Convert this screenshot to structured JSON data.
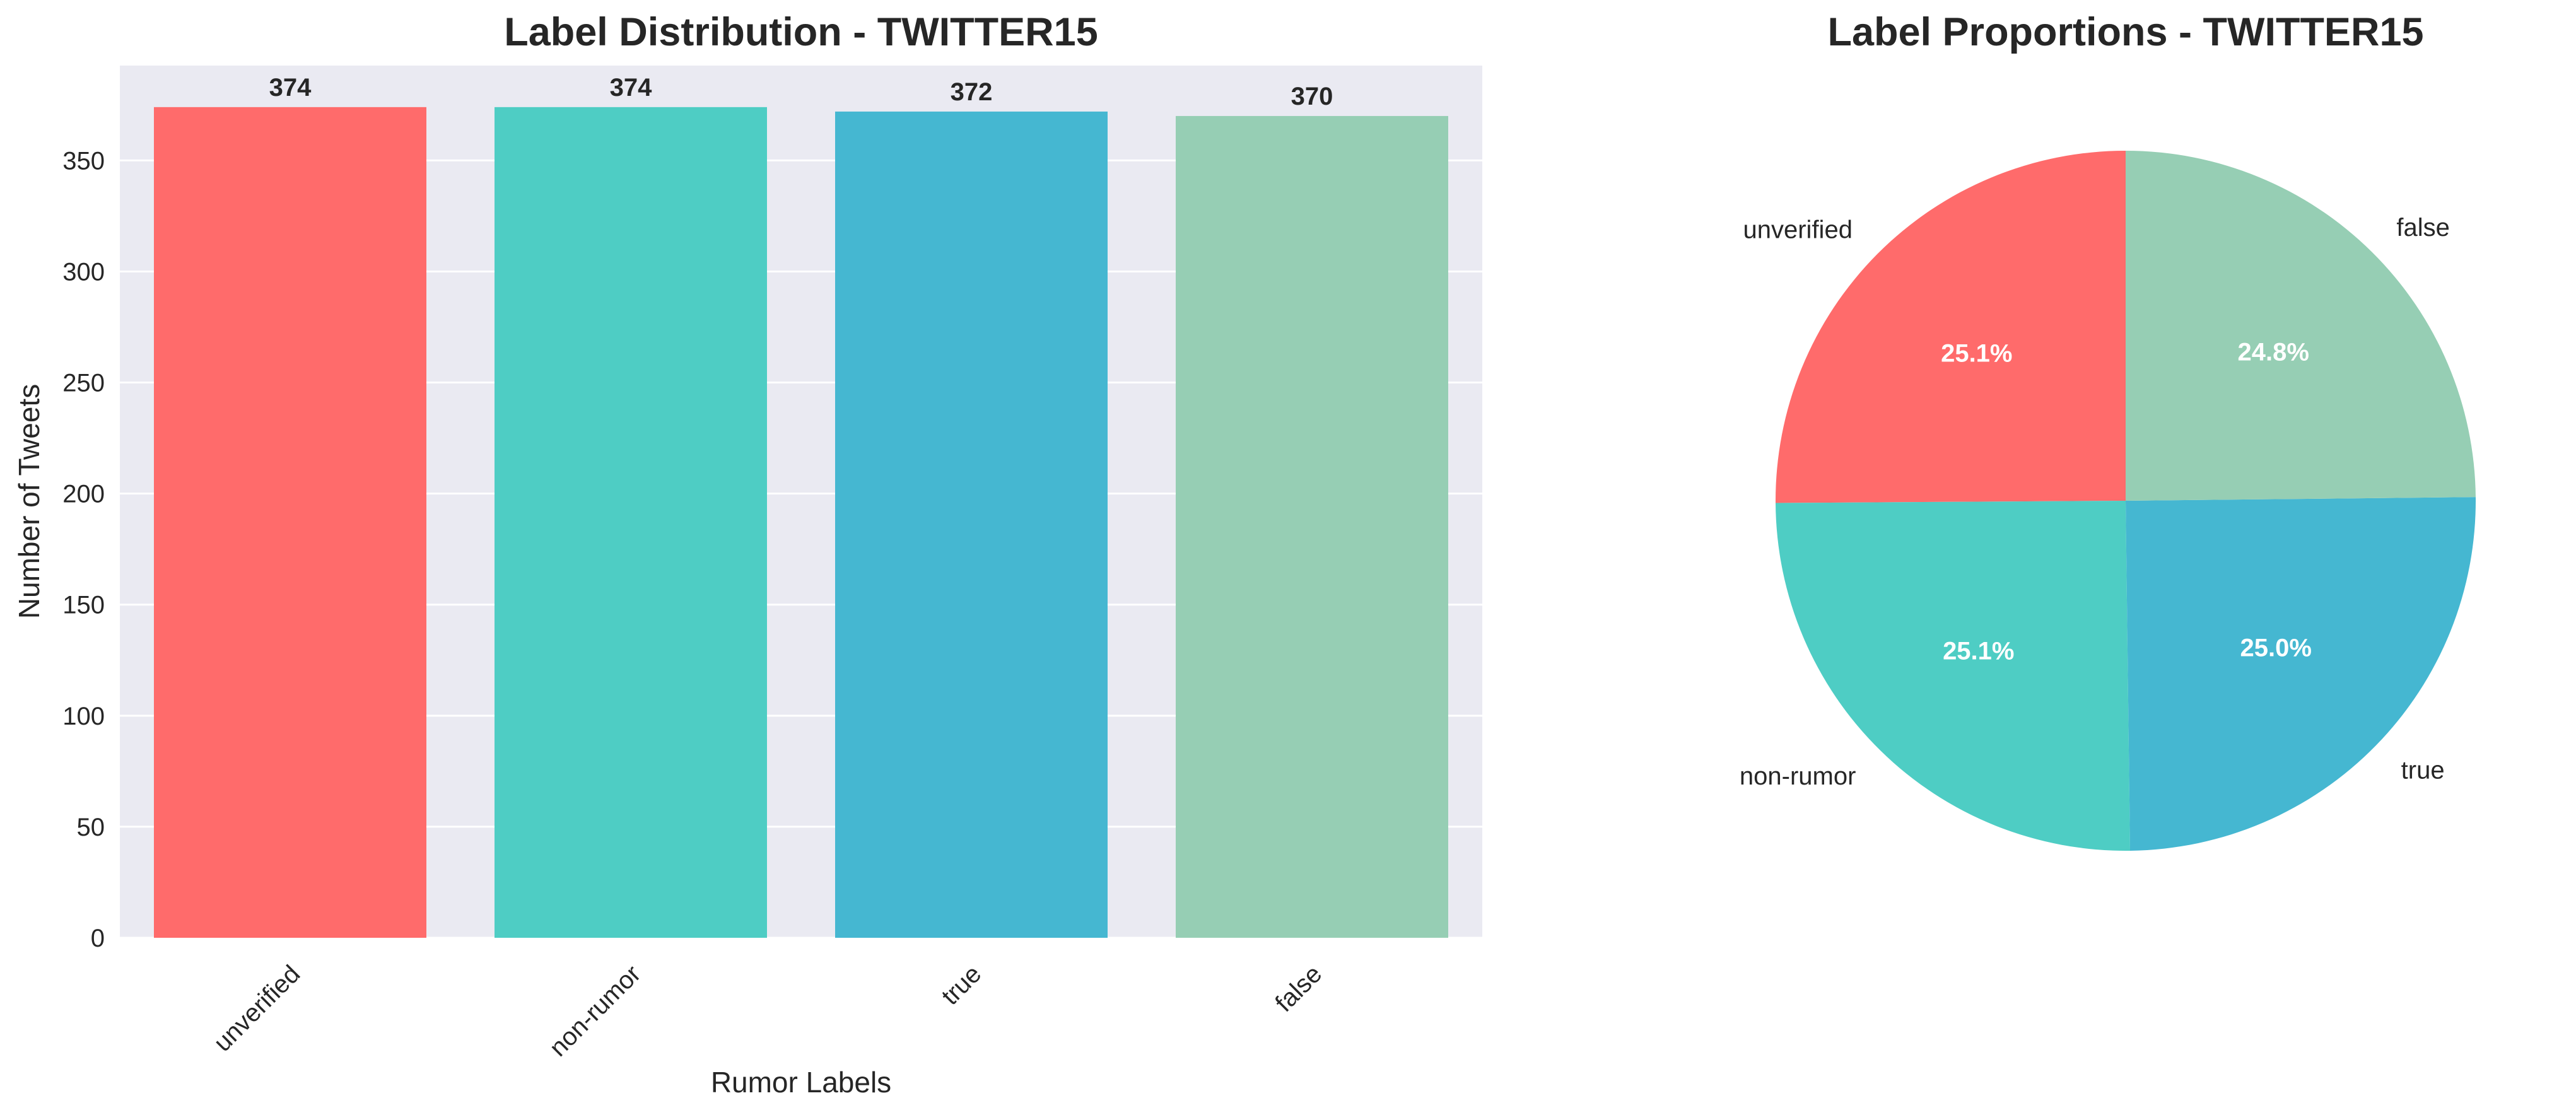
{
  "chart_data": [
    {
      "type": "bar",
      "title": "Label Distribution - TWITTER15",
      "xlabel": "Rumor Labels",
      "ylabel": "Number of Tweets",
      "categories": [
        "unverified",
        "non-rumor",
        "true",
        "false"
      ],
      "values": [
        374,
        374,
        372,
        370
      ],
      "value_labels": [
        "374",
        "374",
        "372",
        "370"
      ],
      "colors": [
        "#FF6B6B",
        "#4ECDC4",
        "#45B7D1",
        "#96CEB4"
      ],
      "ylim": [
        0,
        392.7
      ],
      "yticks": [
        0,
        50,
        100,
        150,
        200,
        250,
        300,
        350
      ],
      "ytick_labels": [
        "0",
        "50",
        "100",
        "150",
        "200",
        "250",
        "300",
        "350"
      ],
      "grid": true,
      "background": "#EAEAF2"
    },
    {
      "type": "pie",
      "title": "Label Proportions - TWITTER15",
      "labels": [
        "unverified",
        "non-rumor",
        "true",
        "false"
      ],
      "values": [
        374,
        374,
        372,
        370
      ],
      "percent_labels": [
        "25.1%",
        "25.1%",
        "25.0%",
        "24.8%"
      ],
      "colors": [
        "#FF6B6B",
        "#4ECDC4",
        "#45B7D1",
        "#96CEB4"
      ],
      "start_angle": 90
    }
  ]
}
